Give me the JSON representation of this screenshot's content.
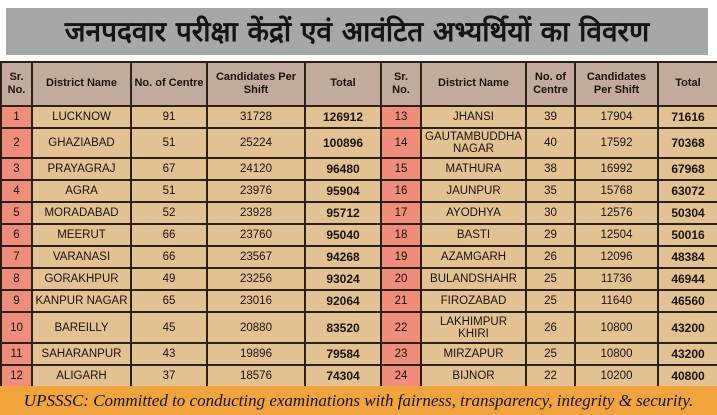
{
  "title": "जनपदवार परीक्षा केंद्रों एवं आवंटित अभ्यर्थियों का विवरण",
  "header_labels": [
    "Sr. No.",
    "District Name",
    "No. of Centre",
    "Candidates Per Shift",
    "Total"
  ],
  "footer": {
    "text": "UPSSSC: Committed to conducting examinations with fairness, transparency, integrity & security."
  },
  "colors": {
    "title_bg": "#a7a7a7",
    "header_bg": "#c2aa9c",
    "serial_bg": "#ee8d7c",
    "cell_bg": "#e2c293",
    "footer_bg": "#f1a33e",
    "border": "#2e2014"
  },
  "rows": [
    {
      "left": {
        "sr": "1",
        "district": "LUCKNOW",
        "centres": "91",
        "per_shift": "31728",
        "total": "126912"
      },
      "right": {
        "sr": "13",
        "district": "JHANSI",
        "centres": "39",
        "per_shift": "17904",
        "total": "71616"
      }
    },
    {
      "left": {
        "sr": "2",
        "district": "GHAZIABAD",
        "centres": "51",
        "per_shift": "25224",
        "total": "100896"
      },
      "right": {
        "sr": "14",
        "district": "GAUTAMBUDDHA NAGAR",
        "centres": "40",
        "per_shift": "17592",
        "total": "70368"
      }
    },
    {
      "left": {
        "sr": "3",
        "district": "PRAYAGRAJ",
        "centres": "67",
        "per_shift": "24120",
        "total": "96480"
      },
      "right": {
        "sr": "15",
        "district": "MATHURA",
        "centres": "38",
        "per_shift": "16992",
        "total": "67968"
      }
    },
    {
      "left": {
        "sr": "4",
        "district": "AGRA",
        "centres": "51",
        "per_shift": "23976",
        "total": "95904"
      },
      "right": {
        "sr": "16",
        "district": "JAUNPUR",
        "centres": "35",
        "per_shift": "15768",
        "total": "63072"
      }
    },
    {
      "left": {
        "sr": "5",
        "district": "MORADABAD",
        "centres": "52",
        "per_shift": "23928",
        "total": "95712"
      },
      "right": {
        "sr": "17",
        "district": "AYODHYA",
        "centres": "30",
        "per_shift": "12576",
        "total": "50304"
      }
    },
    {
      "left": {
        "sr": "6",
        "district": "MEERUT",
        "centres": "66",
        "per_shift": "23760",
        "total": "95040"
      },
      "right": {
        "sr": "18",
        "district": "BASTI",
        "centres": "29",
        "per_shift": "12504",
        "total": "50016"
      }
    },
    {
      "left": {
        "sr": "7",
        "district": "VARANASI",
        "centres": "66",
        "per_shift": "23567",
        "total": "94268"
      },
      "right": {
        "sr": "19",
        "district": "AZAMGARH",
        "centres": "26",
        "per_shift": "12096",
        "total": "48384"
      }
    },
    {
      "left": {
        "sr": "8",
        "district": "GORAKHPUR",
        "centres": "49",
        "per_shift": "23256",
        "total": "93024"
      },
      "right": {
        "sr": "20",
        "district": "BULANDSHAHR",
        "centres": "25",
        "per_shift": "11736",
        "total": "46944"
      }
    },
    {
      "left": {
        "sr": "9",
        "district": "KANPUR NAGAR",
        "centres": "65",
        "per_shift": "23016",
        "total": "92064"
      },
      "right": {
        "sr": "21",
        "district": "FIROZABAD",
        "centres": "25",
        "per_shift": "11640",
        "total": "46560"
      }
    },
    {
      "left": {
        "sr": "10",
        "district": "BAREILLY",
        "centres": "45",
        "per_shift": "20880",
        "total": "83520"
      },
      "right": {
        "sr": "22",
        "district": "LAKHIMPUR KHIRI",
        "centres": "26",
        "per_shift": "10800",
        "total": "43200"
      }
    },
    {
      "left": {
        "sr": "11",
        "district": "SAHARANPUR",
        "centres": "43",
        "per_shift": "19896",
        "total": "79584"
      },
      "right": {
        "sr": "23",
        "district": "MIRZAPUR",
        "centres": "25",
        "per_shift": "10800",
        "total": "43200"
      }
    },
    {
      "left": {
        "sr": "12",
        "district": "ALIGARH",
        "centres": "37",
        "per_shift": "18576",
        "total": "74304"
      },
      "right": {
        "sr": "24",
        "district": "BIJNOR",
        "centres": "22",
        "per_shift": "10200",
        "total": "40800"
      }
    }
  ]
}
